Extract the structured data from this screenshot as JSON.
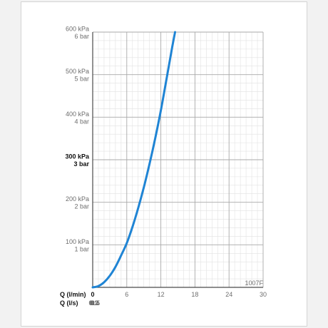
{
  "chart_data": {
    "type": "line",
    "title": "",
    "code": "1007F",
    "x_axes": [
      {
        "name": "Q (l/min)",
        "ticks": [
          "0",
          "6",
          "12",
          "18",
          "24",
          "30"
        ],
        "values": [
          0,
          6,
          12,
          18,
          24,
          30
        ]
      },
      {
        "name": "Q (l/s)",
        "ticks": [
          "0",
          "0.1",
          "0.2",
          "0.3",
          "0.4",
          "0.5"
        ],
        "values": [
          0,
          0.1,
          0.2,
          0.3,
          0.4,
          0.5
        ]
      }
    ],
    "y_axis": {
      "ticks": [
        {
          "value": 100,
          "kpa": "100 kPa",
          "bar": "1 bar",
          "bold": false
        },
        {
          "value": 200,
          "kpa": "200 kPa",
          "bar": "2 bar",
          "bold": false
        },
        {
          "value": 300,
          "kpa": "300 kPa",
          "bar": "3 bar",
          "bold": true
        },
        {
          "value": 400,
          "kpa": "400 kPa",
          "bar": "4 bar",
          "bold": false
        },
        {
          "value": 500,
          "kpa": "500 kPa",
          "bar": "5 bar",
          "bold": false
        },
        {
          "value": 600,
          "kpa": "600 kPa",
          "bar": "6 bar",
          "bold": false
        }
      ]
    },
    "xlim": [
      0,
      30
    ],
    "ylim": [
      0,
      600
    ],
    "grid": true,
    "series": [
      {
        "color": "#1f84d4",
        "points": [
          {
            "x": 0,
            "y": 0
          },
          {
            "x": 1,
            "y": 3
          },
          {
            "x": 2,
            "y": 12
          },
          {
            "x": 3,
            "y": 27
          },
          {
            "x": 4,
            "y": 48
          },
          {
            "x": 5,
            "y": 75
          },
          {
            "x": 6,
            "y": 104
          },
          {
            "x": 7,
            "y": 142
          },
          {
            "x": 8,
            "y": 186
          },
          {
            "x": 9,
            "y": 235
          },
          {
            "x": 10,
            "y": 290
          },
          {
            "x": 11,
            "y": 350
          },
          {
            "x": 12,
            "y": 416
          },
          {
            "x": 13,
            "y": 490
          },
          {
            "x": 14,
            "y": 565
          },
          {
            "x": 14.5,
            "y": 600
          }
        ]
      }
    ]
  }
}
